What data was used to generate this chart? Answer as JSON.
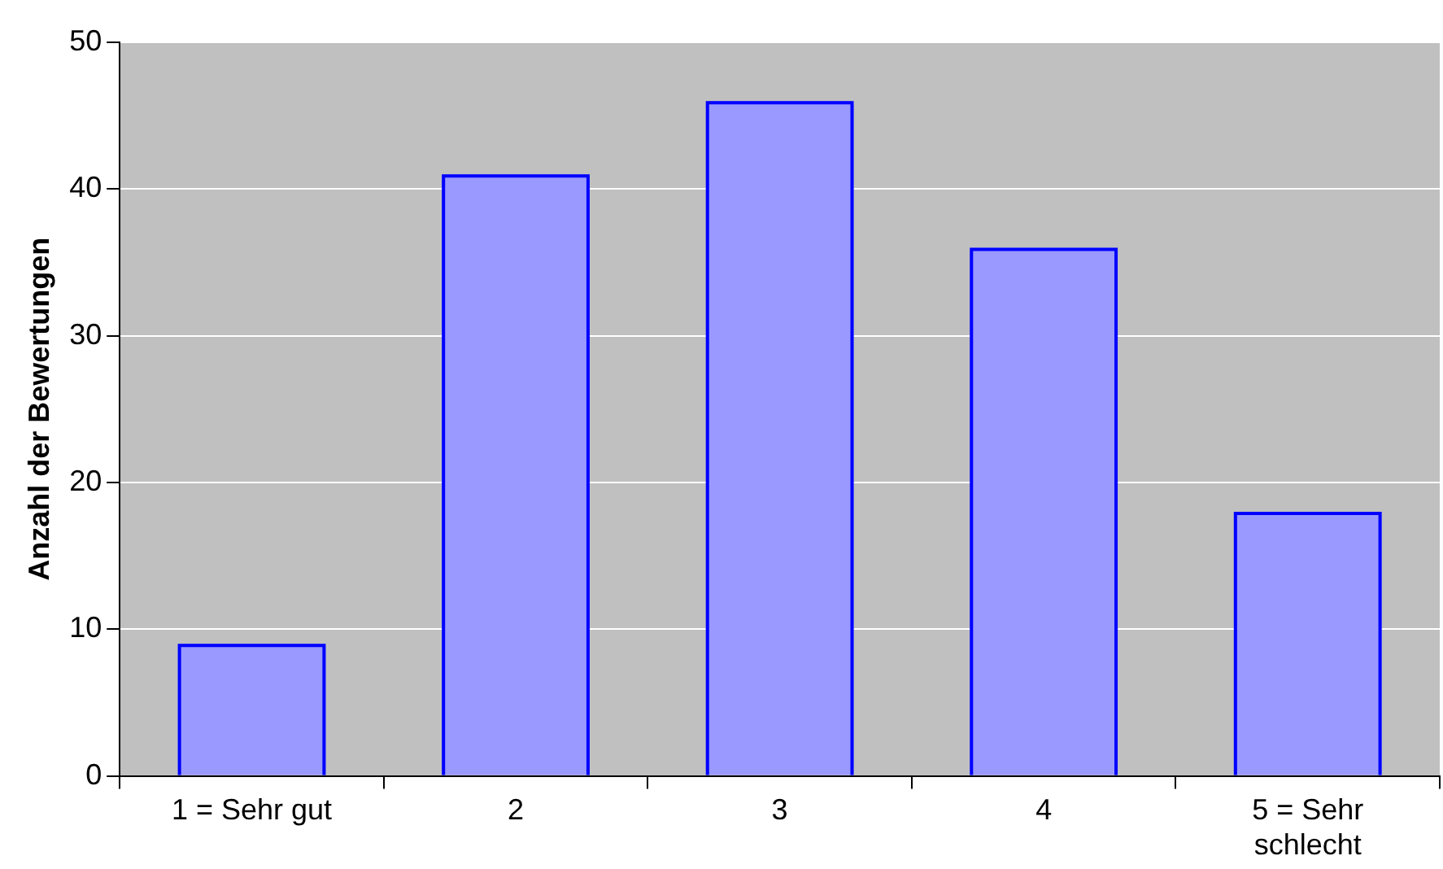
{
  "chart_data": {
    "type": "bar",
    "ylabel": "Anzahl der Bewertungen",
    "categories": [
      "1 = Sehr gut",
      "2",
      "3",
      "4",
      "5 = Sehr schlecht"
    ],
    "values": [
      9,
      41,
      46,
      36,
      18
    ],
    "color": "#9999ff",
    "ylim": [
      0,
      50
    ],
    "yticks": [
      0,
      10,
      20,
      30,
      40,
      50
    ],
    "grid": "y"
  }
}
